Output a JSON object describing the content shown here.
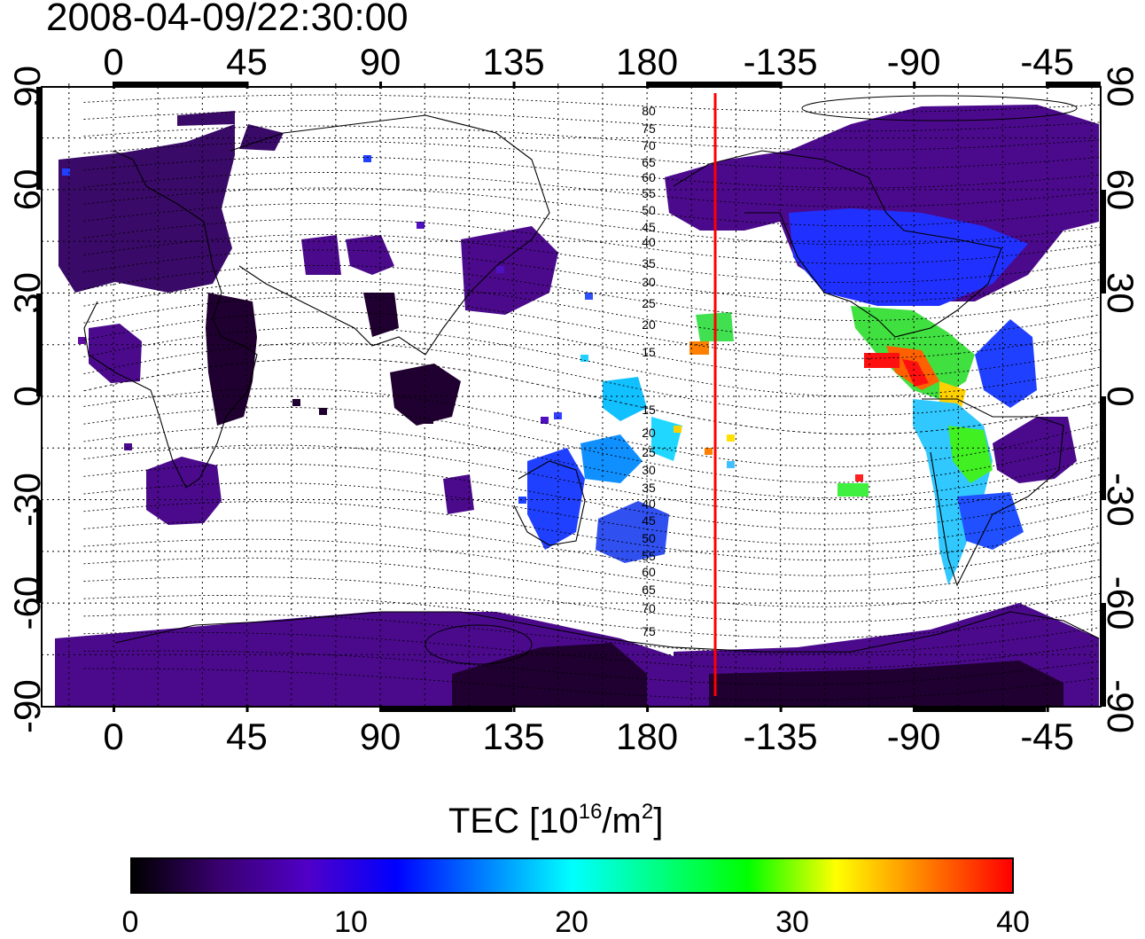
{
  "title": "2008-04-09/22:30:00",
  "map": {
    "top_lon_labels": [
      "0",
      "45",
      "90",
      "135",
      "180",
      "-135",
      "-90",
      "-45"
    ],
    "bottom_lon_labels": [
      "0",
      "45",
      "90",
      "135",
      "180",
      "-135",
      "-90",
      "-45"
    ],
    "left_lat_labels": [
      "90",
      "60",
      "30",
      "0",
      "-30",
      "-60",
      "-90"
    ],
    "right_lat_labels": [
      "90",
      "60",
      "30",
      "0",
      "-30",
      "-60",
      "-90"
    ],
    "terminator_line_color": "#ff0000",
    "contour_labels_upper": [
      "80",
      "75",
      "70",
      "65",
      "60",
      "55",
      "50",
      "45",
      "40",
      "35",
      "30",
      "25",
      "20",
      "15"
    ],
    "contour_labels_lower": [
      "15",
      "20",
      "25",
      "30",
      "35",
      "40",
      "45",
      "50",
      "55",
      "60",
      "65",
      "70",
      "75"
    ],
    "grid": "dotted"
  },
  "colorbar": {
    "title_prefix": "TEC  [10",
    "title_exp1": "16",
    "title_mid": "/m",
    "title_exp2": "2",
    "title_suffix": "]",
    "tick_labels": [
      "0",
      "10",
      "20",
      "30",
      "40"
    ],
    "range": [
      0,
      40
    ],
    "colors": [
      "#000000",
      "#3a0070",
      "#5000c8",
      "#0000ff",
      "#0080ff",
      "#00ffff",
      "#00ff80",
      "#00ff00",
      "#ffff00",
      "#ff8000",
      "#ff0000"
    ]
  }
}
